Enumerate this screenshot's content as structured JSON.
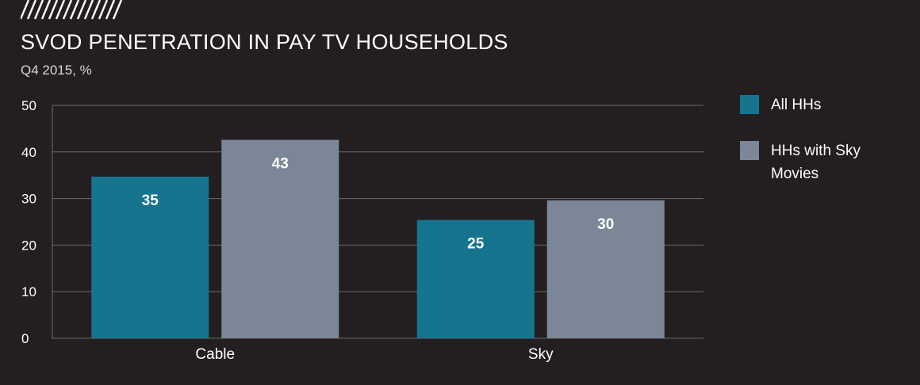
{
  "header": {
    "title": "SVOD PENETRATION IN PAY TV HOUSEHOLDS",
    "subtitle": "Q4 2015, %"
  },
  "colors": {
    "background": "#231f20",
    "grid": "#6d6a6b",
    "axis_text": "#ffffff",
    "decoration": "#ffffff"
  },
  "chart_data": {
    "type": "bar",
    "title": "SVOD PENETRATION IN PAY TV HOUSEHOLDS",
    "subtitle": "Q4 2015, %",
    "xlabel": "",
    "ylabel": "",
    "categories": [
      "Cable",
      "Sky"
    ],
    "series": [
      {
        "name": "All HHs",
        "color": "#17748f",
        "values": [
          34.7,
          25.4
        ],
        "data_labels": [
          "35",
          "25"
        ]
      },
      {
        "name": "HHs with Sky Movies",
        "color": "#7b8797",
        "values": [
          42.6,
          29.6
        ],
        "data_labels": [
          "43",
          "30"
        ]
      }
    ],
    "ylim": [
      0,
      50
    ],
    "yticks": [
      0,
      10,
      20,
      30,
      40,
      50
    ],
    "ytick_labels": [
      "0",
      "10",
      "20",
      "30",
      "40",
      "50"
    ],
    "grid": true,
    "legend_position": "right"
  }
}
